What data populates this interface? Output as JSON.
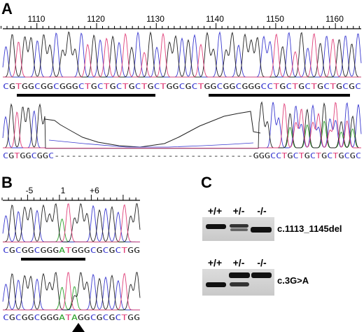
{
  "panels": {
    "A": {
      "label": "A",
      "ruler_ticks": [
        "1110",
        "1120",
        "1130",
        "1140",
        "1150",
        "1160"
      ],
      "top_sequence": "CGTGGCGGCGGGCTGCTGCTGCTGCTGGCGCTGGCGGCGGGCCTGCTGCTGCTGCGC",
      "deleted_sequence": "CGTGGCGGC-----------------------------------GGGCCTGCTGCTGCTGCGC"
    },
    "B": {
      "label": "B",
      "ruler_ticks": [
        "-5",
        "1",
        "+6"
      ],
      "wt_sequence": "CGCGGCGGGATGGGCGCGCTGG",
      "mut_sequence": "CGCGGCGGGATAGGCGCGCTGG"
    },
    "C": {
      "label": "C",
      "gel1": {
        "genotypes": [
          "+/+",
          "+/-",
          "-/-"
        ],
        "caption": "c.1113_1145del"
      },
      "gel2": {
        "genotypes": [
          "+/+",
          "+/-",
          "-/-"
        ],
        "caption": "c.3G>A"
      }
    }
  },
  "colors": {
    "A": "#2aa12a",
    "C": "#3a3ad0",
    "G": "#222222",
    "T": "#e0407a"
  }
}
